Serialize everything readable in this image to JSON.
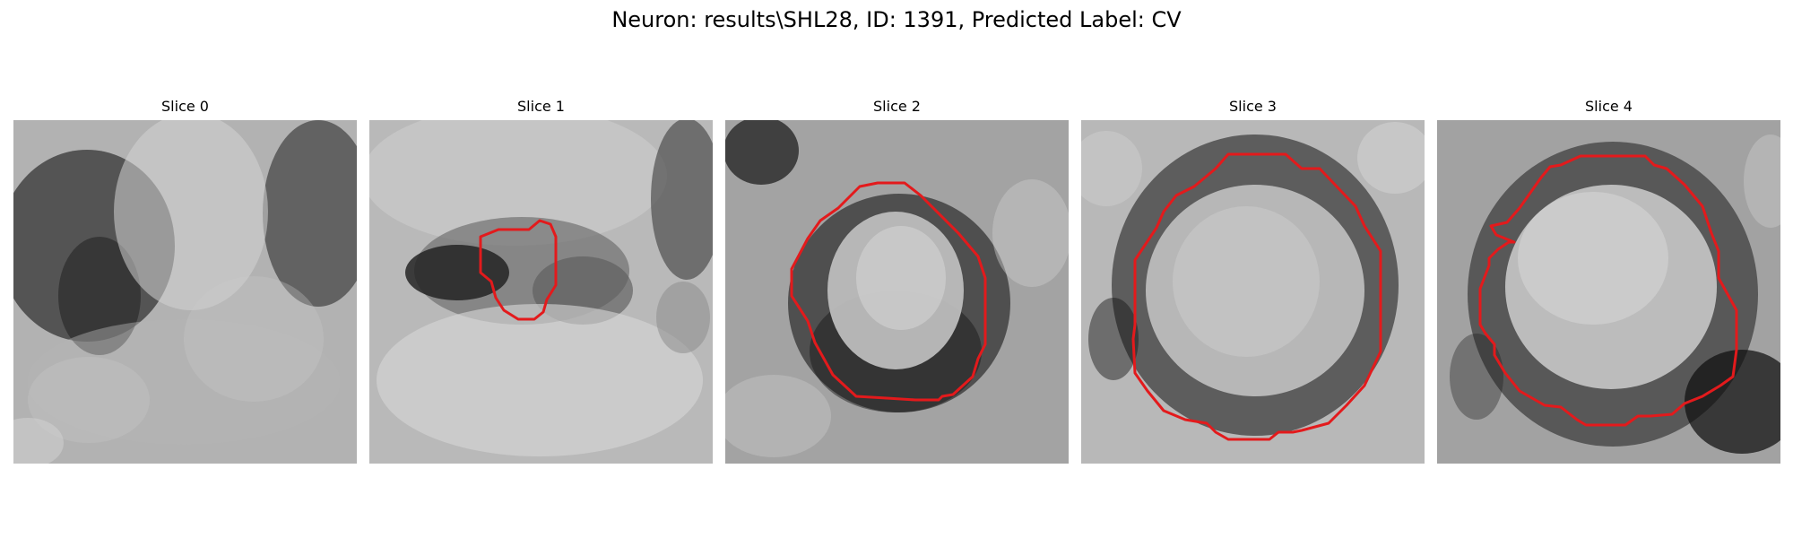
{
  "figure": {
    "suptitle": "Neuron: results\\SHL28, ID: 1391, Predicted Label: CV"
  },
  "slices": [
    {
      "title": "Slice 0",
      "has_contour": false
    },
    {
      "title": "Slice 1",
      "has_contour": true
    },
    {
      "title": "Slice 2",
      "has_contour": true
    },
    {
      "title": "Slice 3",
      "has_contour": true
    },
    {
      "title": "Slice 4",
      "has_contour": true
    }
  ],
  "colors": {
    "contour": "#e31a1c",
    "background": "#ffffff"
  }
}
